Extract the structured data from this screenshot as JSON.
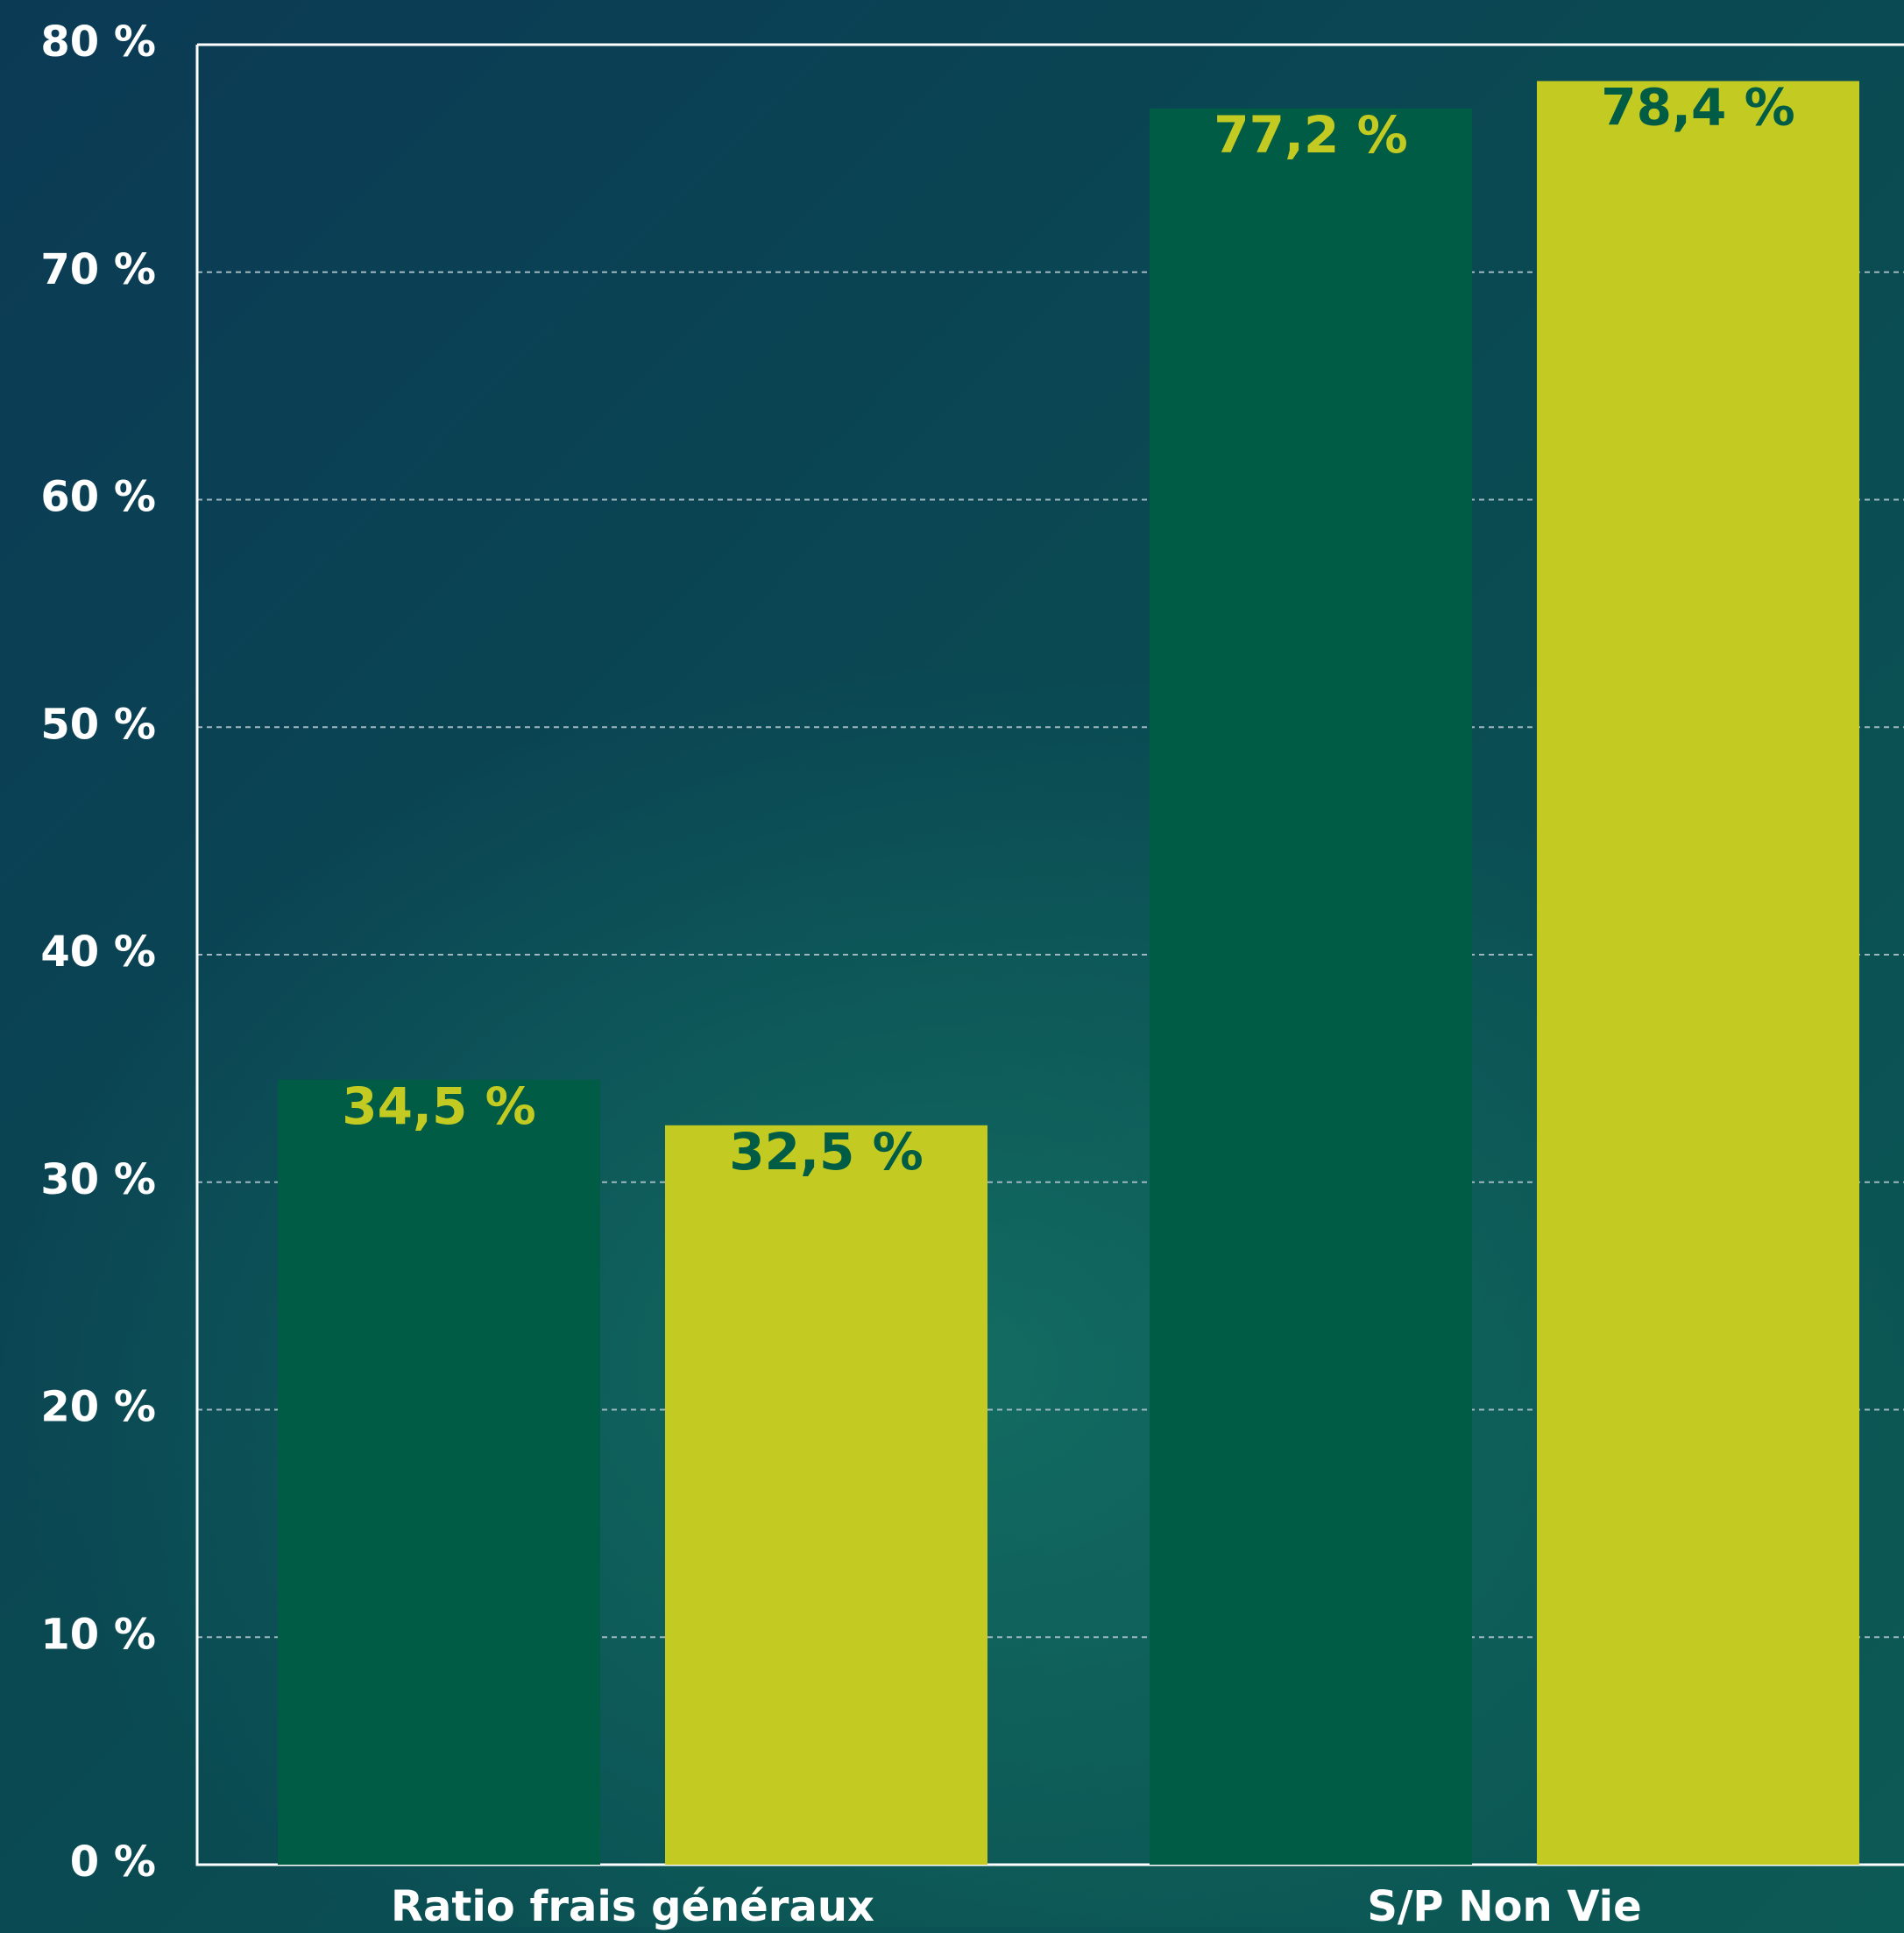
{
  "chart_data": {
    "type": "bar",
    "categories": [
      "Ratio frais généraux",
      "S/P Non Vie"
    ],
    "series": [
      {
        "color": "#005c45",
        "label_color": "#c3cb22",
        "values": [
          34.5,
          77.2
        ],
        "value_labels": [
          "34,5 %",
          "77,2 %"
        ]
      },
      {
        "color": "#c3cb22",
        "label_color": "#005c45",
        "values": [
          32.5,
          78.4
        ],
        "value_labels": [
          "32,5 %",
          "78,4 %"
        ]
      }
    ],
    "ylim": [
      0,
      80
    ],
    "yticks": [
      {
        "value": 0,
        "label": "0 %"
      },
      {
        "value": 10,
        "label": "10 %"
      },
      {
        "value": 20,
        "label": "20 %"
      },
      {
        "value": 30,
        "label": "30 %"
      },
      {
        "value": 40,
        "label": "40 %"
      },
      {
        "value": 50,
        "label": "50 %"
      },
      {
        "value": 60,
        "label": "60 %"
      },
      {
        "value": 70,
        "label": "70 %"
      },
      {
        "value": 80,
        "label": "80 %"
      }
    ],
    "grid": true
  }
}
